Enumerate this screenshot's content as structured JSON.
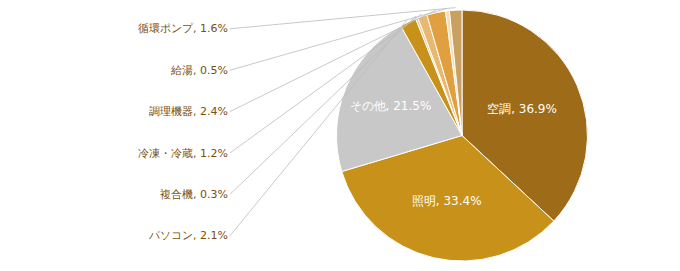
{
  "chart_data": {
    "type": "pie",
    "categories": [
      "空調",
      "照明",
      "その他",
      "パソコン",
      "複合機",
      "冷凍・冷蔵",
      "調理機器",
      "給湯",
      "循環ポンプ"
    ],
    "values": [
      36.9,
      33.4,
      21.5,
      2.1,
      0.3,
      1.2,
      2.4,
      0.5,
      1.6
    ],
    "value_labels": [
      "空調, 36.9%",
      "照明, 33.4%",
      "その他, 21.5%",
      "パソコン, 2.1%",
      "複合機, 0.3%",
      "冷凍・冷蔵, 1.2%",
      "調理機器, 2.4%",
      "給湯, 0.5%",
      "循環ポンプ, 1.6%"
    ],
    "colors": [
      "#9e6b18",
      "#c8921a",
      "#c8c8c8",
      "#c8921a",
      "#f2c98a",
      "#e8b870",
      "#e0a040",
      "#f5ddb0",
      "#c8a060"
    ],
    "data_labels": true
  }
}
